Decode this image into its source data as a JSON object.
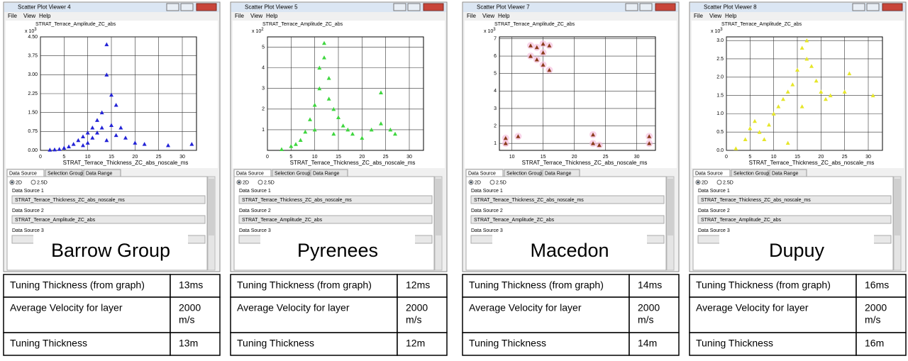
{
  "panels": [
    {
      "window_title": "Scatter Plot Viewer 4",
      "menu": [
        "File",
        "View",
        "Help"
      ],
      "chart_data": {
        "type": "scatter",
        "title": "STRAT_Terrace_Amplitude_ZC_abs",
        "y_scale_base": "x 10",
        "y_scale_exp": "3",
        "x_label": "STRAT_Terrace_Thickness_ZC_abs_noscale_ms",
        "color": "#2323d6",
        "grid": true,
        "xlim": [
          0,
          33
        ],
        "xticks": [
          0,
          5,
          10,
          15,
          20,
          25,
          30
        ],
        "ylim": [
          0,
          4.5
        ],
        "yticks": [
          {
            "value": 0,
            "label": "0.00"
          },
          {
            "value": 0.75,
            "label": "0.75"
          },
          {
            "value": 1.5,
            "label": "1.50"
          },
          {
            "value": 2.25,
            "label": "2.25"
          },
          {
            "value": 3,
            "label": "3.00"
          },
          {
            "value": 3.75,
            "label": "3.75"
          },
          {
            "value": 4.5,
            "label": "4.50"
          }
        ],
        "x": [
          2,
          3,
          4,
          5,
          6,
          7,
          8,
          9,
          9,
          10,
          10,
          11,
          11,
          12,
          12,
          13,
          13,
          14,
          14,
          14,
          15,
          15,
          16,
          16,
          17,
          18,
          20,
          22,
          27,
          32
        ],
        "values": [
          0.02,
          0.03,
          0.05,
          0.1,
          0.15,
          0.25,
          0.4,
          0.55,
          0.2,
          0.7,
          0.3,
          0.9,
          0.5,
          1.2,
          0.7,
          1.5,
          0.9,
          4.2,
          3.0,
          0.4,
          2.2,
          1.0,
          1.8,
          0.6,
          0.9,
          0.5,
          0.3,
          0.25,
          0.2,
          0.25
        ]
      },
      "tabs": [
        "Data Source",
        "Selection Group",
        "Data Range"
      ],
      "radios": [
        "2D",
        "2.5D"
      ],
      "sources": [
        {
          "label": "Data Source 1",
          "value": "STRAT_Terrace_Thickness_ZC_abs_noscale_ms"
        },
        {
          "label": "Data Source 2",
          "value": "STRAT_Terrace_Amplitude_ZC_abs"
        },
        {
          "label": "Data Source 3"
        }
      ],
      "overlay": "Barrow Group",
      "table": {
        "rows": [
          [
            "Tuning Thickness (from graph)",
            "13ms"
          ],
          [
            "Average Velocity for layer",
            [
              "2000",
              "m/s"
            ]
          ],
          [
            "Tuning Thickness",
            "13m"
          ]
        ]
      }
    },
    {
      "window_title": "Scatter Plot Viewer 5",
      "menu": [
        "File",
        "View",
        "Help"
      ],
      "chart_data": {
        "type": "scatter",
        "title": "STRAT_Terrace_Amplitude_ZC_abs",
        "y_scale_base": "x 10",
        "y_scale_exp": "2",
        "x_label": "STRAT_Terrace_Thickness_ZC_abs_noscale_ms",
        "color": "#3fd63f",
        "grid": true,
        "xlim": [
          0,
          33
        ],
        "xticks": [
          0,
          5,
          10,
          15,
          20,
          25,
          30
        ],
        "ylim": [
          0,
          5.5
        ],
        "yticks": [
          1,
          2,
          3,
          4,
          5
        ],
        "x": [
          3,
          5,
          6,
          7,
          8,
          9,
          10,
          10,
          11,
          11,
          12,
          12,
          13,
          13,
          14,
          14,
          15,
          16,
          17,
          18,
          20,
          22,
          24,
          24,
          26,
          27
        ],
        "values": [
          0.05,
          0.2,
          0.3,
          0.5,
          0.9,
          1.5,
          2.2,
          1.0,
          3.0,
          4.0,
          5.2,
          4.5,
          3.5,
          2.5,
          2.0,
          0.8,
          1.6,
          1.2,
          1.0,
          0.8,
          0.6,
          1.0,
          1.3,
          2.8,
          1.0,
          0.8
        ]
      },
      "tabs": [
        "Data Source",
        "Selection Group",
        "Data Range"
      ],
      "radios": [
        "2D",
        "2.5D"
      ],
      "sources": [
        {
          "label": "Data Source 1",
          "value": "STRAT_Terrace_Thickness_ZC_abs_noscale_ms"
        },
        {
          "label": "Data Source 2",
          "value": "STRAT_Terrace_Amplitude_ZC_abs"
        },
        {
          "label": "Data Source 3"
        }
      ],
      "overlay": "Pyrenees",
      "table": {
        "rows": [
          [
            "Tuning Thickness (from graph)",
            "12ms"
          ],
          [
            "Average Velocity for layer",
            [
              "2000",
              "m/s"
            ]
          ],
          [
            "Tuning Thickness",
            "12m"
          ]
        ]
      }
    },
    {
      "window_title": "Scatter Plot Viewer 7",
      "menu": [
        "File",
        "View",
        "Help"
      ],
      "chart_data": {
        "type": "scatter",
        "title": "STRAT_Terrace_Amplitude_ZC_abs",
        "y_scale_base": "x 10",
        "y_scale_exp": "3",
        "x_label": "STRAT_Terrace_Thickness_ZC_abs_noscale_ms",
        "color": "#8b3a1a",
        "halo": "#f4b8d8",
        "grid": true,
        "xlim": [
          8,
          33
        ],
        "xticks": [
          10,
          15,
          20,
          25,
          30
        ],
        "ylim": [
          0.6,
          7.1
        ],
        "yticks": [
          1,
          2,
          3,
          4,
          5,
          6,
          7
        ],
        "x": [
          9,
          9,
          11,
          13,
          13,
          14,
          14,
          15,
          15,
          15,
          16,
          16,
          23,
          23,
          24,
          32,
          32
        ],
        "values": [
          1.3,
          1.0,
          1.4,
          6.6,
          6.0,
          6.5,
          5.8,
          6.7,
          6.2,
          5.5,
          6.6,
          5.2,
          1.5,
          1.0,
          0.9,
          1.4,
          1.0
        ]
      },
      "tabs": [
        "Data Source",
        "Selection Group",
        "Data Range"
      ],
      "radios": [
        "2D",
        "2.5D"
      ],
      "sources": [
        {
          "label": "Data Source 1",
          "value": "STRAT_Terrace_Thickness_ZC_abs_noscale_ms"
        },
        {
          "label": "Data Source 2",
          "value": "STRAT_Terrace_Amplitude_ZC_abs"
        },
        {
          "label": "Data Source 3"
        }
      ],
      "overlay": "Macedon",
      "table": {
        "rows": [
          [
            "Tuning Thickness (from graph)",
            "14ms"
          ],
          [
            "Average Velocity for layer",
            [
              "2000",
              "m/s"
            ]
          ],
          [
            "Tuning Thickness",
            "14m"
          ]
        ]
      }
    },
    {
      "window_title": "Scatter Plot Viewer 8",
      "menu": [
        "File",
        "View",
        "Help"
      ],
      "chart_data": {
        "type": "scatter",
        "title": "STRAT_Terrace_Amplitude_ZC_abs",
        "y_scale_base": "x 10",
        "y_scale_exp": "3",
        "x_label": "STRAT_Terrace_Thickness_ZC_abs_noscale_ms",
        "color": "#e6e62a",
        "grid": true,
        "xlim": [
          0,
          33
        ],
        "xticks": [
          0,
          5,
          10,
          15,
          20,
          25,
          30
        ],
        "ylim": [
          0,
          3.1
        ],
        "yticks": [
          {
            "value": 0,
            "label": "0.0"
          },
          {
            "value": 0.5,
            "label": "0.5"
          },
          {
            "value": 1,
            "label": "1.0"
          },
          {
            "value": 1.5,
            "label": "1.5"
          },
          {
            "value": 2,
            "label": "2.0"
          },
          {
            "value": 2.5,
            "label": "2.5"
          },
          {
            "value": 3,
            "label": "3.0"
          }
        ],
        "x": [
          2,
          4,
          5,
          6,
          7,
          8,
          9,
          10,
          11,
          12,
          13,
          13,
          14,
          15,
          16,
          16,
          17,
          17,
          18,
          19,
          20,
          21,
          22,
          25,
          26,
          31
        ],
        "values": [
          0.05,
          0.3,
          0.6,
          0.8,
          0.5,
          0.3,
          0.7,
          1.0,
          1.2,
          1.4,
          1.6,
          0.2,
          1.8,
          2.2,
          2.8,
          1.2,
          3.0,
          2.5,
          2.3,
          1.9,
          1.6,
          1.4,
          1.5,
          1.6,
          2.1,
          1.5
        ]
      },
      "tabs": [
        "Data Source",
        "Selection Group",
        "Data Range"
      ],
      "radios": [
        "2D",
        "2.5D"
      ],
      "sources": [
        {
          "label": "Data Source 1",
          "value": "STRAT_Terrace_Thickness_ZC_abs_noscale_ms"
        },
        {
          "label": "Data Source 2",
          "value": "STRAT_Terrace_Amplitude_ZC_abs"
        },
        {
          "label": "Data Source 3"
        }
      ],
      "overlay": "Dupuy",
      "table": {
        "rows": [
          [
            "Tuning Thickness (from graph)",
            "16ms"
          ],
          [
            "Average Velocity for layer",
            [
              "2000",
              "m/s"
            ]
          ],
          [
            "Tuning Thickness",
            "16m"
          ]
        ]
      }
    }
  ]
}
